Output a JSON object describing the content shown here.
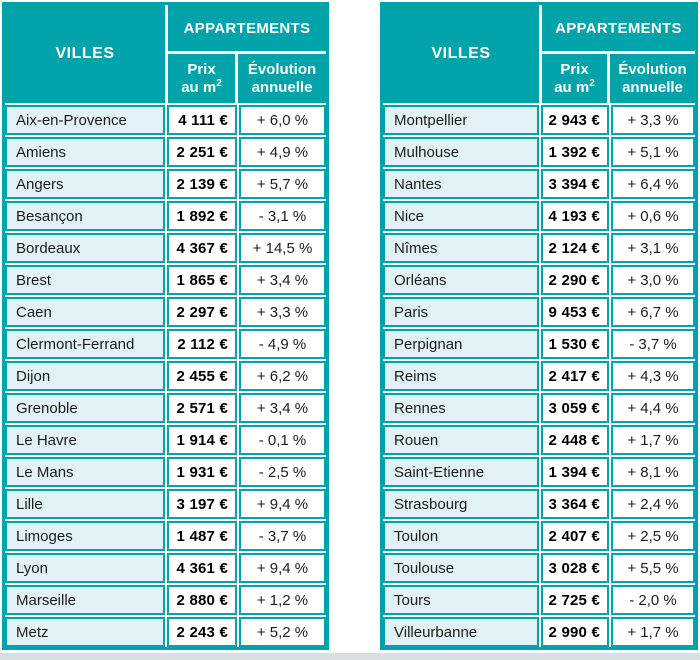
{
  "accent_color": "#00a3a9",
  "city_row_color": "#e1f1f6",
  "header": {
    "villes": "VILLES",
    "appartements": "APPARTEMENTS",
    "prix_line1": "Prix",
    "prix_line2": "au m",
    "prix_sup": "2",
    "evo_line1": "Évolution",
    "evo_line2": "annuelle"
  },
  "tables": [
    {
      "rows": [
        {
          "city": "Aix-en-Provence",
          "price": "4 111 €",
          "evolution": "+ 6,0 %"
        },
        {
          "city": "Amiens",
          "price": "2 251 €",
          "evolution": "+ 4,9 %"
        },
        {
          "city": "Angers",
          "price": "2 139 €",
          "evolution": "+ 5,7 %"
        },
        {
          "city": "Besançon",
          "price": "1 892 €",
          "evolution": "- 3,1 %"
        },
        {
          "city": "Bordeaux",
          "price": "4 367 €",
          "evolution": "+ 14,5 %"
        },
        {
          "city": "Brest",
          "price": "1 865 €",
          "evolution": "+ 3,4 %"
        },
        {
          "city": "Caen",
          "price": "2 297 €",
          "evolution": "+ 3,3 %"
        },
        {
          "city": "Clermont-Ferrand",
          "price": "2 112 €",
          "evolution": "- 4,9 %"
        },
        {
          "city": "Dijon",
          "price": "2 455 €",
          "evolution": "+ 6,2 %"
        },
        {
          "city": "Grenoble",
          "price": "2 571 €",
          "evolution": "+ 3,4 %"
        },
        {
          "city": "Le Havre",
          "price": "1 914 €",
          "evolution": "- 0,1 %"
        },
        {
          "city": "Le Mans",
          "price": "1 931 €",
          "evolution": "- 2,5 %"
        },
        {
          "city": "Lille",
          "price": "3 197 €",
          "evolution": "+ 9,4 %"
        },
        {
          "city": "Limoges",
          "price": "1 487 €",
          "evolution": "- 3,7 %"
        },
        {
          "city": "Lyon",
          "price": "4 361 €",
          "evolution": "+ 9,4 %"
        },
        {
          "city": "Marseille",
          "price": "2 880 €",
          "evolution": "+ 1,2 %"
        },
        {
          "city": "Metz",
          "price": "2 243 €",
          "evolution": "+ 5,2 %"
        }
      ]
    },
    {
      "rows": [
        {
          "city": "Montpellier",
          "price": "2 943 €",
          "evolution": "+ 3,3 %"
        },
        {
          "city": "Mulhouse",
          "price": "1 392 €",
          "evolution": "+ 5,1 %"
        },
        {
          "city": "Nantes",
          "price": "3 394 €",
          "evolution": "+ 6,4 %"
        },
        {
          "city": "Nice",
          "price": "4 193 €",
          "evolution": "+ 0,6 %"
        },
        {
          "city": "Nîmes",
          "price": "2 124 €",
          "evolution": "+ 3,1 %"
        },
        {
          "city": "Orléans",
          "price": "2 290 €",
          "evolution": "+ 3,0 %"
        },
        {
          "city": "Paris",
          "price": "9 453 €",
          "evolution": "+ 6,7 %"
        },
        {
          "city": "Perpignan",
          "price": "1 530 €",
          "evolution": "- 3,7 %"
        },
        {
          "city": "Reims",
          "price": "2 417 €",
          "evolution": "+ 4,3 %"
        },
        {
          "city": "Rennes",
          "price": "3 059 €",
          "evolution": "+ 4,4 %"
        },
        {
          "city": "Rouen",
          "price": "2 448 €",
          "evolution": "+ 1,7 %"
        },
        {
          "city": "Saint-Etienne",
          "price": "1 394 €",
          "evolution": "+ 8,1 %"
        },
        {
          "city": "Strasbourg",
          "price": "3 364 €",
          "evolution": "+ 2,4 %"
        },
        {
          "city": "Toulon",
          "price": "2 407 €",
          "evolution": "+ 2,5 %"
        },
        {
          "city": "Toulouse",
          "price": "3 028 €",
          "evolution": "+ 5,5 %"
        },
        {
          "city": "Tours",
          "price": "2 725 €",
          "evolution": "- 2,0 %"
        },
        {
          "city": "Villeurbanne",
          "price": "2 990 €",
          "evolution": "+ 1,7 %"
        }
      ]
    }
  ],
  "chart_data": [
    {
      "type": "table",
      "title": "APPARTEMENTS",
      "columns": [
        "VILLES",
        "Prix au m2",
        "Évolution annuelle"
      ],
      "rows": [
        [
          "Aix-en-Provence",
          "4 111 €",
          "+ 6,0 %"
        ],
        [
          "Amiens",
          "2 251 €",
          "+ 4,9 %"
        ],
        [
          "Angers",
          "2 139 €",
          "+ 5,7 %"
        ],
        [
          "Besançon",
          "1 892 €",
          "- 3,1 %"
        ],
        [
          "Bordeaux",
          "4 367 €",
          "+ 14,5 %"
        ],
        [
          "Brest",
          "1 865 €",
          "+ 3,4 %"
        ],
        [
          "Caen",
          "2 297 €",
          "+ 3,3 %"
        ],
        [
          "Clermont-Ferrand",
          "2 112 €",
          "- 4,9 %"
        ],
        [
          "Dijon",
          "2 455 €",
          "+ 6,2 %"
        ],
        [
          "Grenoble",
          "2 571 €",
          "+ 3,4 %"
        ],
        [
          "Le Havre",
          "1 914 €",
          "- 0,1 %"
        ],
        [
          "Le Mans",
          "1 931 €",
          "- 2,5 %"
        ],
        [
          "Lille",
          "3 197 €",
          "+ 9,4 %"
        ],
        [
          "Limoges",
          "1 487 €",
          "- 3,7 %"
        ],
        [
          "Lyon",
          "4 361 €",
          "+ 9,4 %"
        ],
        [
          "Marseille",
          "2 880 €",
          "+ 1,2 %"
        ],
        [
          "Metz",
          "2 243 €",
          "+ 5,2 %"
        ]
      ]
    },
    {
      "type": "table",
      "title": "APPARTEMENTS",
      "columns": [
        "VILLES",
        "Prix au m2",
        "Évolution annuelle"
      ],
      "rows": [
        [
          "Montpellier",
          "2 943 €",
          "+ 3,3 %"
        ],
        [
          "Mulhouse",
          "1 392 €",
          "+ 5,1 %"
        ],
        [
          "Nantes",
          "3 394 €",
          "+ 6,4 %"
        ],
        [
          "Nice",
          "4 193 €",
          "+ 0,6 %"
        ],
        [
          "Nîmes",
          "2 124 €",
          "+ 3,1 %"
        ],
        [
          "Orléans",
          "2 290 €",
          "+ 3,0 %"
        ],
        [
          "Paris",
          "9 453 €",
          "+ 6,7 %"
        ],
        [
          "Perpignan",
          "1 530 €",
          "- 3,7 %"
        ],
        [
          "Reims",
          "2 417 €",
          "+ 4,3 %"
        ],
        [
          "Rennes",
          "3 059 €",
          "+ 4,4 %"
        ],
        [
          "Rouen",
          "2 448 €",
          "+ 1,7 %"
        ],
        [
          "Saint-Etienne",
          "1 394 €",
          "+ 8,1 %"
        ],
        [
          "Strasbourg",
          "3 364 €",
          "+ 2,4 %"
        ],
        [
          "Toulon",
          "2 407 €",
          "+ 2,5 %"
        ],
        [
          "Toulouse",
          "3 028 €",
          "+ 5,5 %"
        ],
        [
          "Tours",
          "2 725 €",
          "- 2,0 %"
        ],
        [
          "Villeurbanne",
          "2 990 €",
          "+ 1,7 %"
        ]
      ]
    }
  ]
}
